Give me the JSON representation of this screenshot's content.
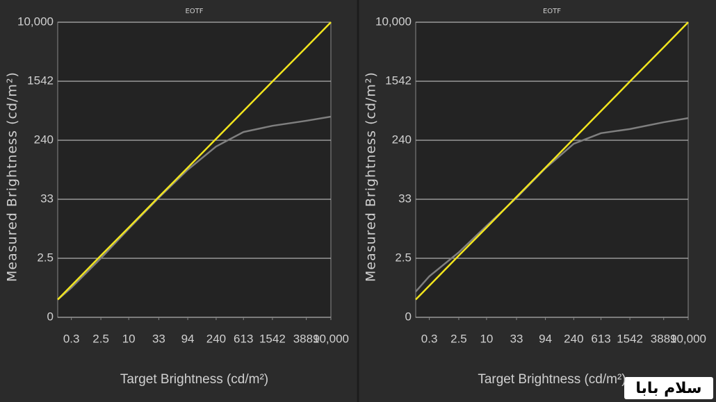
{
  "chart_data": [
    {
      "type": "line",
      "title": "EOTF",
      "x_label": "Target Brightness (cd/m²)",
      "y_label": "Measured Brightness (cd/m²)",
      "x": [
        0,
        0.05,
        0.158,
        0.26,
        0.37,
        0.476,
        0.58,
        0.68,
        0.786,
        0.91,
        1
      ],
      "series": [
        {
          "color": "#7f7f7f",
          "values": [
            0.06,
            0.1,
            0.2,
            0.3,
            0.405,
            0.5,
            0.579,
            0.628,
            0.649,
            0.666,
            0.68
          ]
        },
        {
          "color": "#f2e51e",
          "values": [
            0.06,
            0.107,
            0.209,
            0.304,
            0.408,
            0.507,
            0.605,
            0.699,
            0.799,
            0.915,
            1
          ]
        }
      ],
      "xlim": [
        0,
        1
      ],
      "ylim": [
        0,
        1
      ],
      "xticks": [
        {
          "value": 0.05,
          "label": "0.3"
        },
        {
          "value": 0.158,
          "label": "2.5"
        },
        {
          "value": 0.26,
          "label": "10"
        },
        {
          "value": 0.37,
          "label": "33"
        },
        {
          "value": 0.476,
          "label": "94"
        },
        {
          "value": 0.58,
          "label": "240"
        },
        {
          "value": 0.68,
          "label": "613"
        },
        {
          "value": 0.786,
          "label": "1542"
        },
        {
          "value": 0.91,
          "label": "3889"
        },
        {
          "value": 1,
          "label": "10,000"
        }
      ],
      "yticks": [
        0,
        {
          "value": 0.2,
          "label": "2.5"
        },
        {
          "value": 0.4,
          "label": "33"
        },
        {
          "value": 0.6,
          "label": "240"
        },
        {
          "value": 0.8,
          "label": "1542"
        },
        {
          "value": 1,
          "label": "10,000"
        }
      ],
      "grid": true
    },
    {
      "type": "line",
      "title": "EOTF",
      "x_label": "Target Brightness (cd/m²)",
      "y_label": "Measured Brightness (cd/m²)",
      "x": [
        0,
        0.05,
        0.158,
        0.26,
        0.37,
        0.476,
        0.58,
        0.68,
        0.786,
        0.91,
        1
      ],
      "series": [
        {
          "color": "#7f7f7f",
          "values": [
            0.087,
            0.139,
            0.22,
            0.31,
            0.405,
            0.505,
            0.588,
            0.624,
            0.638,
            0.661,
            0.675
          ]
        },
        {
          "color": "#f2e51e",
          "values": [
            0.06,
            0.107,
            0.209,
            0.304,
            0.408,
            0.507,
            0.605,
            0.699,
            0.799,
            0.915,
            1
          ]
        }
      ],
      "xlim": [
        0,
        1
      ],
      "ylim": [
        0,
        1
      ],
      "xticks": [
        {
          "value": 0.05,
          "label": "0.3"
        },
        {
          "value": 0.158,
          "label": "2.5"
        },
        {
          "value": 0.26,
          "label": "10"
        },
        {
          "value": 0.37,
          "label": "33"
        },
        {
          "value": 0.476,
          "label": "94"
        },
        {
          "value": 0.58,
          "label": "240"
        },
        {
          "value": 0.68,
          "label": "613"
        },
        {
          "value": 0.786,
          "label": "1542"
        },
        {
          "value": 0.91,
          "label": "3889"
        },
        {
          "value": 1,
          "label": "10,000"
        }
      ],
      "yticks": [
        0,
        {
          "value": 0.2,
          "label": "2.5"
        },
        {
          "value": 0.4,
          "label": "33"
        },
        {
          "value": 0.6,
          "label": "240"
        },
        {
          "value": 0.8,
          "label": "1542"
        },
        {
          "value": 1,
          "label": "10,000"
        }
      ],
      "grid": true
    }
  ],
  "watermark": "سلام بابا"
}
